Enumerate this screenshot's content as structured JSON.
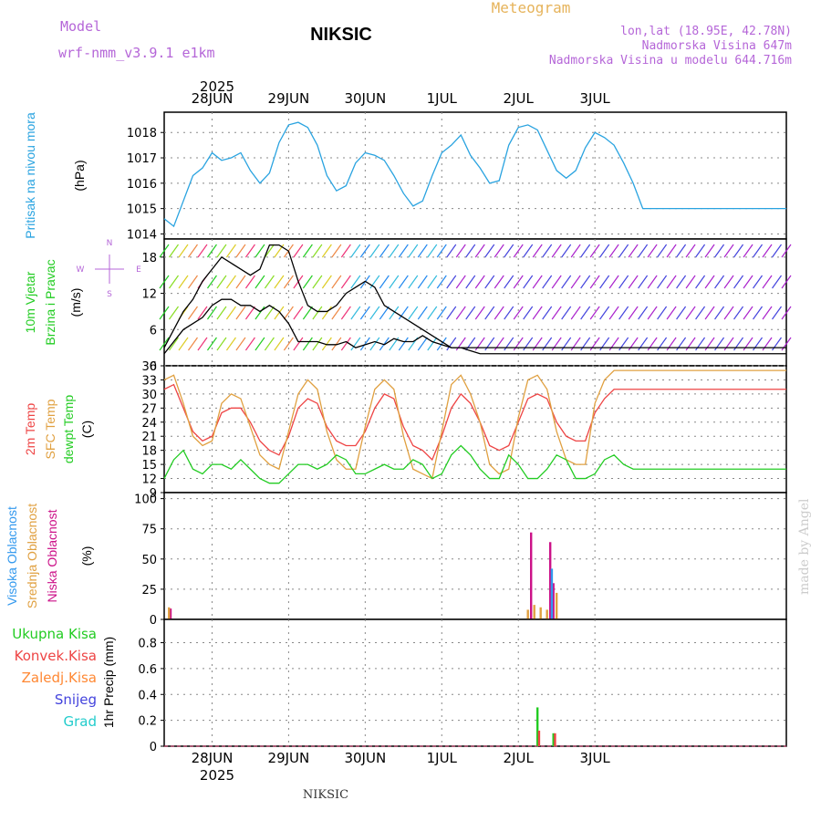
{
  "header": {
    "title": "NIKSIC",
    "meteogram_label": "Meteogram",
    "model_label": "Model",
    "model_name": "wrf-nmm_v3.9.1 e1km",
    "lonlat": "lon,lat (18.95E, 42.78N)",
    "elevation": "Nadmorska Visina 647m",
    "model_elevation": "Nadmorska Visina u modelu 644.716m",
    "year": "2025",
    "footer_station": "NIKSIC",
    "credit": "made by Angel"
  },
  "colors": {
    "pressure": "#29a3e0",
    "t2m": "#ee4444",
    "sfc": "#e0a040",
    "dewpt": "#22cc22",
    "cloud_high": "#3399ee",
    "cloud_mid": "#e0a040",
    "cloud_low": "#cc1188",
    "precip_total": "#22cc22",
    "precip_conv": "#ee4444",
    "precip_frz": "#ff8833",
    "precip_snow": "#4444dd",
    "precip_hail": "#22cccc",
    "wind_speed": "#000000",
    "wind_gust": "#ee4444",
    "grid": "#888888"
  },
  "chart_data": [
    {
      "type": "line",
      "panel": "pressure",
      "x_ticks": [
        "28JUN",
        "29JUN",
        "30JUN",
        "1JUL",
        "2JUL",
        "3JUL"
      ],
      "label_lines": [
        "Pritisak na nivou mora",
        "(hPa)"
      ],
      "ylim": [
        1013.8,
        1018.8
      ],
      "y_ticks": [
        1014,
        1015,
        1016,
        1017,
        1018
      ],
      "grid": true,
      "x_hours": [
        -15,
        -12,
        -9,
        -6,
        -3,
        0,
        3,
        6,
        9,
        12,
        15,
        18,
        21,
        24,
        27,
        30,
        33,
        36,
        39,
        42,
        45,
        48,
        51,
        54,
        57,
        60,
        63,
        66,
        69,
        72,
        75,
        78,
        81,
        84,
        87,
        90,
        93,
        96,
        99,
        102,
        105,
        108,
        111,
        114,
        117,
        120,
        123,
        126,
        129,
        132,
        135,
        138,
        141,
        144,
        147,
        150,
        153,
        156,
        159,
        162,
        165,
        168,
        171,
        174,
        177,
        180
      ],
      "series": [
        {
          "key": "pressure",
          "values": [
            1014.6,
            1014.3,
            1015.3,
            1016.3,
            1016.6,
            1017.2,
            1016.9,
            1017.0,
            1017.2,
            1016.5,
            1016.0,
            1016.4,
            1017.6,
            1018.3,
            1018.4,
            1018.2,
            1017.5,
            1016.3,
            1015.7,
            1015.9,
            1016.8,
            1017.2,
            1017.1,
            1016.9,
            1016.3,
            1015.6,
            1015.1,
            1015.3,
            1016.3,
            1017.2,
            1017.5,
            1017.9,
            1017.1,
            1016.6,
            1016.0,
            1016.1,
            1017.5,
            1018.2,
            1018.3,
            1018.1,
            1017.3,
            1016.5,
            1016.2,
            1016.5,
            1017.4,
            1018.0,
            1017.8,
            1017.5,
            1016.8,
            1016.0,
            1015.0,
            1015.0,
            1015.0,
            1015.0,
            1015.0,
            1015.0,
            1015.0,
            1015.0,
            1015.0,
            1015.0,
            1015.0,
            1015.0,
            1015.0,
            1015.0,
            1015.0,
            1015.0
          ]
        }
      ]
    },
    {
      "type": "line",
      "panel": "wind",
      "label_lines": [
        "10m Vjetar",
        "Brzina i Pravac",
        "(m/s)"
      ],
      "compass": {
        "n": "N",
        "e": "E",
        "s": "S",
        "w": "W"
      },
      "ylim": [
        0,
        21
      ],
      "y_ticks": [
        0,
        6,
        12,
        18
      ],
      "grid": true,
      "x_hours": [
        -15,
        -12,
        -9,
        -6,
        -3,
        0,
        3,
        6,
        9,
        12,
        15,
        18,
        21,
        24,
        27,
        30,
        33,
        36,
        39,
        42,
        45,
        48,
        51,
        54,
        57,
        60,
        63,
        66,
        69,
        72,
        75,
        78,
        81,
        84,
        87,
        90,
        93,
        96,
        99,
        102,
        105,
        108,
        111,
        114,
        117,
        120,
        123,
        126,
        129,
        132,
        135,
        138,
        141,
        144,
        147,
        150,
        153,
        156,
        159,
        162,
        165,
        168,
        171,
        174,
        177,
        180
      ],
      "series": [
        {
          "key": "speed",
          "values": [
            2,
            4,
            6,
            7,
            8,
            10,
            11,
            11,
            10,
            10,
            9,
            10,
            9,
            7,
            4,
            4,
            4,
            3.5,
            3.5,
            4,
            3,
            3.5,
            4,
            3.5,
            4.5,
            4,
            4,
            5,
            4,
            3.5,
            3,
            3,
            2.5,
            2,
            2,
            2,
            2,
            2,
            2,
            2,
            2,
            2,
            2,
            2,
            2,
            2,
            2,
            2,
            2,
            2,
            2,
            2,
            2,
            2,
            2,
            2,
            2,
            2,
            2,
            2,
            2,
            2,
            2,
            2,
            2,
            2
          ]
        },
        {
          "key": "gust",
          "values": [
            3,
            6,
            9,
            11,
            14,
            16,
            18,
            17,
            16,
            15,
            16,
            20,
            20,
            19,
            14,
            10,
            9,
            9,
            10,
            12,
            13,
            14,
            13,
            10,
            9,
            8,
            7,
            6,
            5,
            4,
            3,
            3,
            3,
            3,
            3,
            3,
            3,
            3,
            3,
            3,
            3,
            3,
            3,
            3,
            3,
            3,
            3,
            3,
            3,
            3,
            3,
            3,
            3,
            3,
            3,
            3,
            3,
            3,
            3,
            3,
            3,
            3,
            3,
            3,
            3,
            3
          ]
        }
      ]
    },
    {
      "type": "line",
      "panel": "temperature",
      "label_lines": [
        "2m Temp",
        "SFC Temp",
        "dewpt Temp",
        "(C)"
      ],
      "ylim": [
        9,
        36
      ],
      "y_ticks": [
        9,
        12,
        15,
        18,
        21,
        24,
        27,
        30,
        33,
        36
      ],
      "grid": true,
      "x_hours": [
        -15,
        -12,
        -9,
        -6,
        -3,
        0,
        3,
        6,
        9,
        12,
        15,
        18,
        21,
        24,
        27,
        30,
        33,
        36,
        39,
        42,
        45,
        48,
        51,
        54,
        57,
        60,
        63,
        66,
        69,
        72,
        75,
        78,
        81,
        84,
        87,
        90,
        93,
        96,
        99,
        102,
        105,
        108,
        111,
        114,
        117,
        120,
        123,
        126,
        129,
        132,
        135,
        138,
        141,
        144,
        147,
        150,
        153,
        156,
        159,
        162,
        165,
        168,
        171,
        174,
        177,
        180
      ],
      "series": [
        {
          "key": "t2m",
          "values": [
            31,
            32,
            27,
            22,
            20,
            21,
            26,
            27,
            27,
            24,
            20,
            18,
            17,
            21,
            27,
            29,
            28,
            23,
            20,
            19,
            19,
            22,
            27,
            30,
            29,
            23,
            19,
            18,
            16,
            21,
            27,
            30,
            28,
            24,
            19,
            18,
            19,
            24,
            29,
            30,
            29,
            24,
            21,
            20,
            20,
            26,
            29,
            31,
            31,
            31,
            31,
            31,
            31,
            31,
            31,
            31,
            31,
            31,
            31,
            31,
            31,
            31,
            31,
            31,
            31,
            31
          ]
        },
        {
          "key": "sfc",
          "values": [
            33,
            34,
            28,
            21,
            19,
            20,
            28,
            30,
            29,
            23,
            17,
            15,
            14,
            22,
            30,
            33,
            31,
            22,
            16,
            14,
            14,
            23,
            31,
            33,
            31,
            21,
            14,
            13,
            12,
            22,
            32,
            34,
            30,
            24,
            15,
            13,
            14,
            25,
            33,
            34,
            31,
            22,
            16,
            15,
            15,
            28,
            33,
            35,
            35,
            35,
            35,
            35,
            35,
            35,
            35,
            35,
            35,
            35,
            35,
            35,
            35,
            35,
            35,
            35,
            35,
            35
          ]
        },
        {
          "key": "dewpt",
          "values": [
            12,
            16,
            18,
            14,
            13,
            15,
            15,
            14,
            16,
            14,
            12,
            11,
            11,
            13,
            15,
            15,
            14,
            15,
            17,
            16,
            13,
            13,
            14,
            15,
            14,
            14,
            16,
            15,
            12,
            13,
            17,
            19,
            17,
            14,
            12,
            12,
            17,
            15,
            12,
            12,
            14,
            17,
            16,
            12,
            12,
            13,
            16,
            17,
            15,
            14,
            14,
            14,
            14,
            14,
            14,
            14,
            14,
            14,
            14,
            14,
            14,
            14,
            14,
            14,
            14,
            14
          ]
        }
      ]
    },
    {
      "type": "bar",
      "panel": "clouds",
      "label_lines": [
        "Visoka Oblacnost",
        "Srednja Oblacnost",
        "Niska Oblacnost",
        "(%)"
      ],
      "ylim": [
        0,
        105
      ],
      "y_ticks": [
        0,
        25,
        50,
        75,
        100
      ],
      "grid": true,
      "series": [
        {
          "key": "cloud_low",
          "name": "Niska Oblacnost",
          "x_hours": [
            -13,
            100,
            106,
            107
          ],
          "values": [
            9,
            72,
            64,
            30
          ]
        },
        {
          "key": "cloud_mid",
          "name": "Srednja Oblacnost",
          "x_hours": [
            -13.5,
            99,
            101,
            103,
            105,
            108
          ],
          "values": [
            10,
            8,
            12,
            10,
            8,
            22
          ]
        },
        {
          "key": "cloud_high",
          "name": "Visoka Oblacnost",
          "x_hours": [
            106.5
          ],
          "values": [
            42
          ]
        }
      ]
    },
    {
      "type": "bar",
      "panel": "precipitation",
      "label_lines": [
        "1hr Precip (mm)"
      ],
      "legend": [
        "Ukupna Kisa",
        "Konvek.Kisa",
        "Zaledj.Kisa",
        "Snijeg",
        "Grad"
      ],
      "ylim": [
        0,
        0.98
      ],
      "y_ticks": [
        0,
        0.2,
        0.4,
        0.6,
        0.8
      ],
      "grid": true,
      "series": [
        {
          "key": "precip_total",
          "name": "Ukupna Kisa",
          "x_hours": [
            102,
            107
          ],
          "values": [
            0.3,
            0.1
          ]
        },
        {
          "key": "precip_conv",
          "name": "Konvek.Kisa",
          "x_hours": [
            102.5,
            107.5
          ],
          "values": [
            0.12,
            0.1
          ]
        }
      ]
    }
  ]
}
